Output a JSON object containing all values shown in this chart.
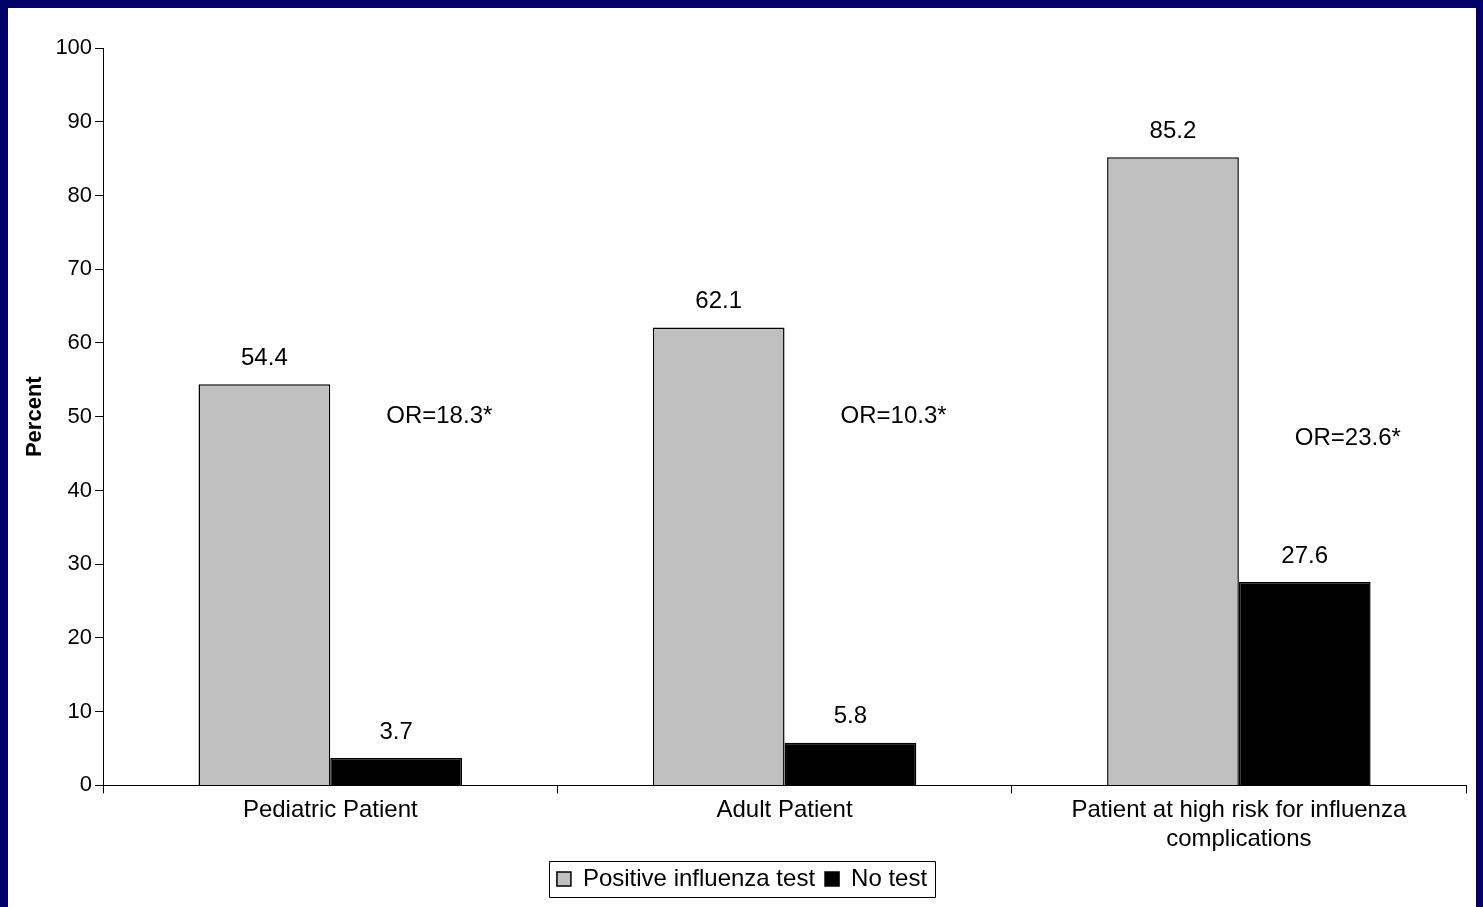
{
  "chart_data": {
    "type": "bar",
    "ylabel": "Percent",
    "categories": [
      "Pediatric Patient",
      "Adult Patient",
      "Patient at high risk for influenza complications"
    ],
    "series": [
      {
        "name": "Positive influenza test",
        "color": "#c0c0c0",
        "values": [
          54.4,
          62.1,
          85.2
        ]
      },
      {
        "name": "No test",
        "color": "#000000",
        "values": [
          3.7,
          5.8,
          27.6
        ]
      }
    ],
    "ylim": [
      0,
      100
    ],
    "yticks": [
      0,
      10,
      20,
      30,
      40,
      50,
      60,
      70,
      80,
      90,
      100
    ],
    "grid": false,
    "legend": "bottom",
    "data_labels": true,
    "annotations": [
      "OR=18.3*",
      "OR=10.3*",
      "OR=23.6*"
    ]
  }
}
